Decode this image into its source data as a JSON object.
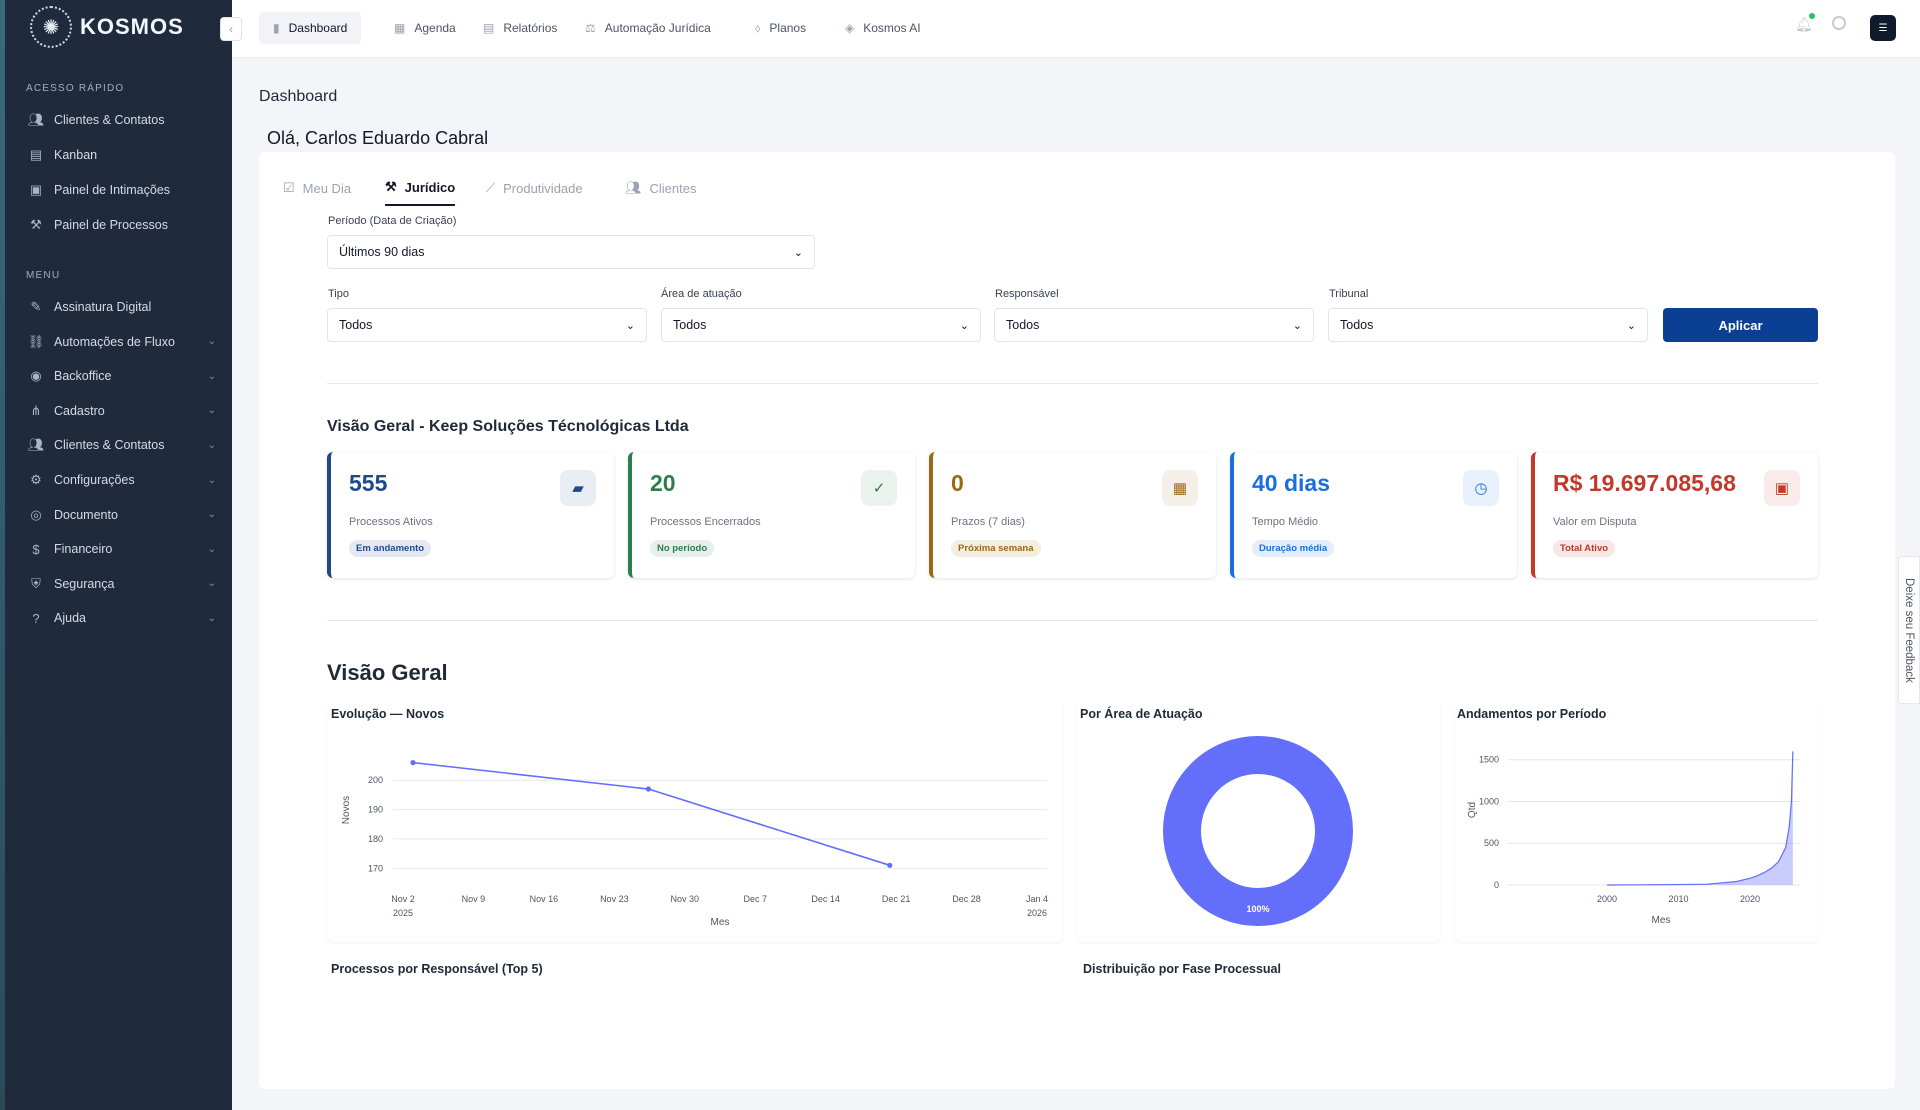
{
  "brand": {
    "name": "KOSMOS"
  },
  "sidebar": {
    "quick_title": "ACESSO RÁPIDO",
    "quick": [
      {
        "label": "Clientes & Contatos",
        "icon": "users-cog-icon"
      },
      {
        "label": "Kanban",
        "icon": "kanban-icon"
      },
      {
        "label": "Painel de Intimações",
        "icon": "inbox-icon"
      },
      {
        "label": "Painel de Processos",
        "icon": "gavel-icon"
      }
    ],
    "menu_title": "MENU",
    "menu": [
      {
        "label": "Assinatura Digital",
        "icon": "signature-icon",
        "chevron": false
      },
      {
        "label": "Automações de Fluxo",
        "icon": "flow-icon",
        "chevron": true
      },
      {
        "label": "Backoffice",
        "icon": "backoffice-icon",
        "chevron": true
      },
      {
        "label": "Cadastro",
        "icon": "network-icon",
        "chevron": true
      },
      {
        "label": "Clientes & Contatos",
        "icon": "users-icon",
        "chevron": true
      },
      {
        "label": "Configurações",
        "icon": "gear-icon",
        "chevron": true
      },
      {
        "label": "Documento",
        "icon": "document-icon",
        "chevron": true
      },
      {
        "label": "Financeiro",
        "icon": "money-icon",
        "chevron": true
      },
      {
        "label": "Segurança",
        "icon": "shield-icon",
        "chevron": true
      },
      {
        "label": "Ajuda",
        "icon": "help-icon",
        "chevron": true
      }
    ]
  },
  "topnav": [
    {
      "label": "Dashboard",
      "icon": "chart-icon",
      "active": true
    },
    {
      "label": "Agenda",
      "icon": "calendar-icon"
    },
    {
      "label": "Relatórios",
      "icon": "report-icon"
    },
    {
      "label": "Automação Jurídica",
      "icon": "scale-icon"
    },
    {
      "label": "Planos",
      "icon": "plan-icon"
    },
    {
      "label": "Kosmos AI",
      "icon": "ai-icon"
    }
  ],
  "page": {
    "title": "Dashboard",
    "greeting": "Olá, Carlos Eduardo Cabral"
  },
  "tabs": [
    {
      "label": "Meu Dia",
      "icon": "calendar-check-icon"
    },
    {
      "label": "Jurídico",
      "icon": "hammer-icon",
      "active": true
    },
    {
      "label": "Produtividade",
      "icon": "trend-icon"
    },
    {
      "label": "Clientes",
      "icon": "users-icon"
    }
  ],
  "filters": {
    "period": {
      "label": "Período (Data de Criação)",
      "value": "Últimos 90 dias"
    },
    "tipo": {
      "label": "Tipo",
      "value": "Todos"
    },
    "area": {
      "label": "Área de atuação",
      "value": "Todos"
    },
    "responsavel": {
      "label": "Responsável",
      "value": "Todos"
    },
    "tribunal": {
      "label": "Tribunal",
      "value": "Todos"
    },
    "apply_label": "Aplicar"
  },
  "overview": {
    "title": "Visão Geral - Keep Soluções Técnológicas Ltda",
    "kpis": [
      {
        "value": "555",
        "label": "Processos Ativos",
        "badge": "Em andamento",
        "color": "#1e4a8c",
        "icon": "folder-open-icon"
      },
      {
        "value": "20",
        "label": "Processos Encerrados",
        "badge": "No período",
        "color": "#2e7d4f",
        "icon": "check-circle-icon"
      },
      {
        "value": "0",
        "label": "Prazos (7 dias)",
        "badge": "Próxima semana",
        "color": "#9a6a12",
        "icon": "calendar-grid-icon"
      },
      {
        "value": "40 dias",
        "label": "Tempo Médio",
        "badge": "Duração média",
        "color": "#1a6fe0",
        "icon": "clock-icon"
      },
      {
        "value": "R$ 19.697.085,68",
        "label": "Valor em Disputa",
        "badge": "Total Ativo",
        "color": "#c0392b",
        "icon": "money-bill-icon"
      }
    ]
  },
  "charts_section": {
    "title": "Visão Geral",
    "evolucao_title": "Evolução — Novos",
    "area_title": "Por Área de Atuação",
    "andamentos_title": "Andamentos por Período",
    "responsavel_title": "Processos por Responsável (Top 5)",
    "fase_title": "Distribuição por Fase Processual"
  },
  "chart_data": [
    {
      "type": "line",
      "title": "Evolução — Novos",
      "xlabel": "Mes",
      "ylabel": "Novos",
      "x_ticks": [
        "Nov 2|2025",
        "Nov 9",
        "Nov 16",
        "Nov 23",
        "Nov 30",
        "Dec 7",
        "Dec 14",
        "Dec 21",
        "Dec 28",
        "Jan 4|2026"
      ],
      "y_ticks": [
        170,
        180,
        190,
        200
      ],
      "ylim": [
        166,
        212
      ],
      "series": [
        {
          "x": [
            "2025-10-01",
            "2025-11-01",
            "2025-12-01"
          ],
          "values": [
            206,
            197,
            171
          ]
        }
      ],
      "color": "#636efa"
    },
    {
      "type": "pie",
      "title": "Por Área de Atuação",
      "slices": [
        {
          "label": "",
          "value": 100,
          "text": "100%"
        }
      ],
      "hole": 0.6,
      "color": "#636efa"
    },
    {
      "type": "area",
      "title": "Andamentos por Período",
      "xlabel": "Mes",
      "ylabel": "Qtd",
      "x_ticks": [
        2000,
        2010,
        2020
      ],
      "y_ticks": [
        0,
        500,
        1000,
        1500
      ],
      "xlim": [
        1986,
        2027
      ],
      "ylim": [
        0,
        1700
      ],
      "series": [
        {
          "x": [
            2000,
            2005,
            2010,
            2014,
            2016,
            2018,
            2019,
            2020,
            2021,
            2022,
            2023,
            2024,
            2025,
            2025.5,
            2025.8,
            2026
          ],
          "values": [
            0,
            2,
            5,
            10,
            25,
            40,
            60,
            80,
            110,
            150,
            200,
            280,
            450,
            700,
            1000,
            1600
          ]
        }
      ],
      "color": "#636efa"
    }
  ],
  "feedback": "Deixe seu Feedback"
}
